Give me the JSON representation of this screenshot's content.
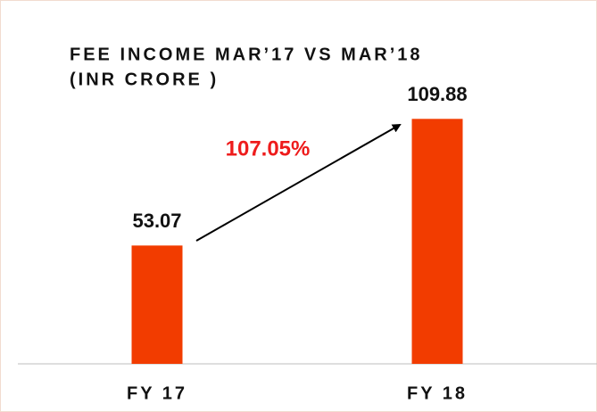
{
  "chart_data": {
    "type": "bar",
    "title": [
      "FEE INCOME MAR’17 VS MAR’18",
      "(INR CRORE )"
    ],
    "categories": [
      "FY 17",
      "FY 18"
    ],
    "values": [
      53.07,
      109.88
    ],
    "color": "#f23c00",
    "annotation": "107.05%"
  }
}
